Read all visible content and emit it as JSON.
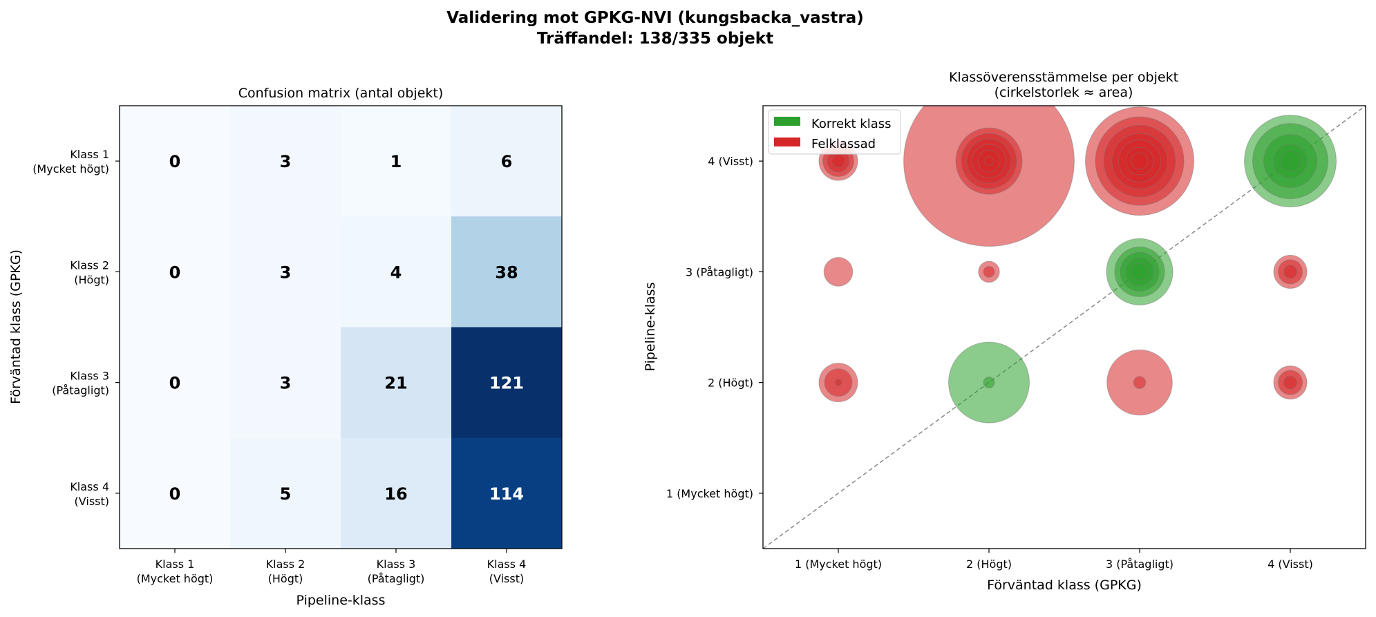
{
  "figure": {
    "title_line1": "Validering mot GPKG-NVI (kungsbacka_vastra)",
    "title_line2": "Träffandel: 138/335 objekt"
  },
  "chart_data": [
    {
      "type": "heatmap",
      "title": "Confusion matrix (antal objekt)",
      "xlabel": "Pipeline-klass",
      "ylabel": "Förväntad klass (GPKG)",
      "x_ticks": [
        [
          "Klass 1",
          "(Mycket högt)"
        ],
        [
          "Klass 2",
          "(Högt)"
        ],
        [
          "Klass 3",
          "(Påtagligt)"
        ],
        [
          "Klass 4",
          "(Visst)"
        ]
      ],
      "y_ticks": [
        [
          "Klass 1",
          "(Mycket högt)"
        ],
        [
          "Klass 2",
          "(Högt)"
        ],
        [
          "Klass 3",
          "(Påtagligt)"
        ],
        [
          "Klass 4",
          "(Visst)"
        ]
      ],
      "matrix": [
        [
          0,
          3,
          1,
          6
        ],
        [
          0,
          3,
          4,
          38
        ],
        [
          0,
          3,
          21,
          121
        ],
        [
          0,
          5,
          16,
          114
        ]
      ],
      "colormap": "Blues",
      "value_range": [
        0,
        121
      ]
    },
    {
      "type": "scatter",
      "title_line1": "Klassöverensstämmelse per objekt",
      "title_line2": "(cirkelstorlek ≈ area)",
      "xlabel": "Förväntad klass (GPKG)",
      "ylabel": "Pipeline-klass",
      "x_ticks": [
        "1 (Mycket högt)",
        "2 (Högt)",
        "3 (Påtagligt)",
        "4 (Visst)"
      ],
      "y_ticks": [
        "1 (Mycket högt)",
        "2 (Högt)",
        "3 (Påtagligt)",
        "4 (Visst)"
      ],
      "xlim": [
        0.5,
        4.5
      ],
      "ylim": [
        0.5,
        4.5
      ],
      "diagonal_reference": true,
      "legend": {
        "placement": "top-left",
        "items": [
          {
            "label": "Korrekt klass",
            "color": "#2ca02c"
          },
          {
            "label": "Felklassad",
            "color": "#d62728"
          }
        ]
      },
      "colors": {
        "correct": "#2ca02c",
        "misclassified": "#d62728"
      },
      "points_note_units": "x = förväntad klass, y = pipeline-klass, s = relativ cirkelstorlek",
      "points": [
        {
          "x": 1,
          "y": 4,
          "s": [
            0.35,
            0.28,
            0.2,
            0.12
          ]
        },
        {
          "x": 2,
          "y": 4,
          "s": [
            1.54,
            0.6,
            0.5,
            0.4,
            0.3,
            0.2,
            0.08
          ]
        },
        {
          "x": 3,
          "y": 4,
          "s": [
            0.98,
            0.8,
            0.65,
            0.5,
            0.38,
            0.25,
            0.15
          ]
        },
        {
          "x": 4,
          "y": 4,
          "s": [
            0.83,
            0.68,
            0.48,
            0.3,
            0.18
          ]
        },
        {
          "x": 1,
          "y": 3,
          "s": [
            0.26
          ]
        },
        {
          "x": 2,
          "y": 3,
          "s": [
            0.19,
            0.1
          ]
        },
        {
          "x": 3,
          "y": 3,
          "s": [
            0.6,
            0.45,
            0.35,
            0.25,
            0.15
          ]
        },
        {
          "x": 4,
          "y": 3,
          "s": [
            0.3,
            0.22,
            0.12
          ]
        },
        {
          "x": 1,
          "y": 2,
          "s": [
            0.35,
            0.25,
            0.06
          ]
        },
        {
          "x": 2,
          "y": 2,
          "s": [
            0.73,
            0.1
          ]
        },
        {
          "x": 3,
          "y": 2,
          "s": [
            0.59,
            0.11
          ]
        },
        {
          "x": 4,
          "y": 2,
          "s": [
            0.3,
            0.22,
            0.12
          ]
        }
      ]
    }
  ]
}
